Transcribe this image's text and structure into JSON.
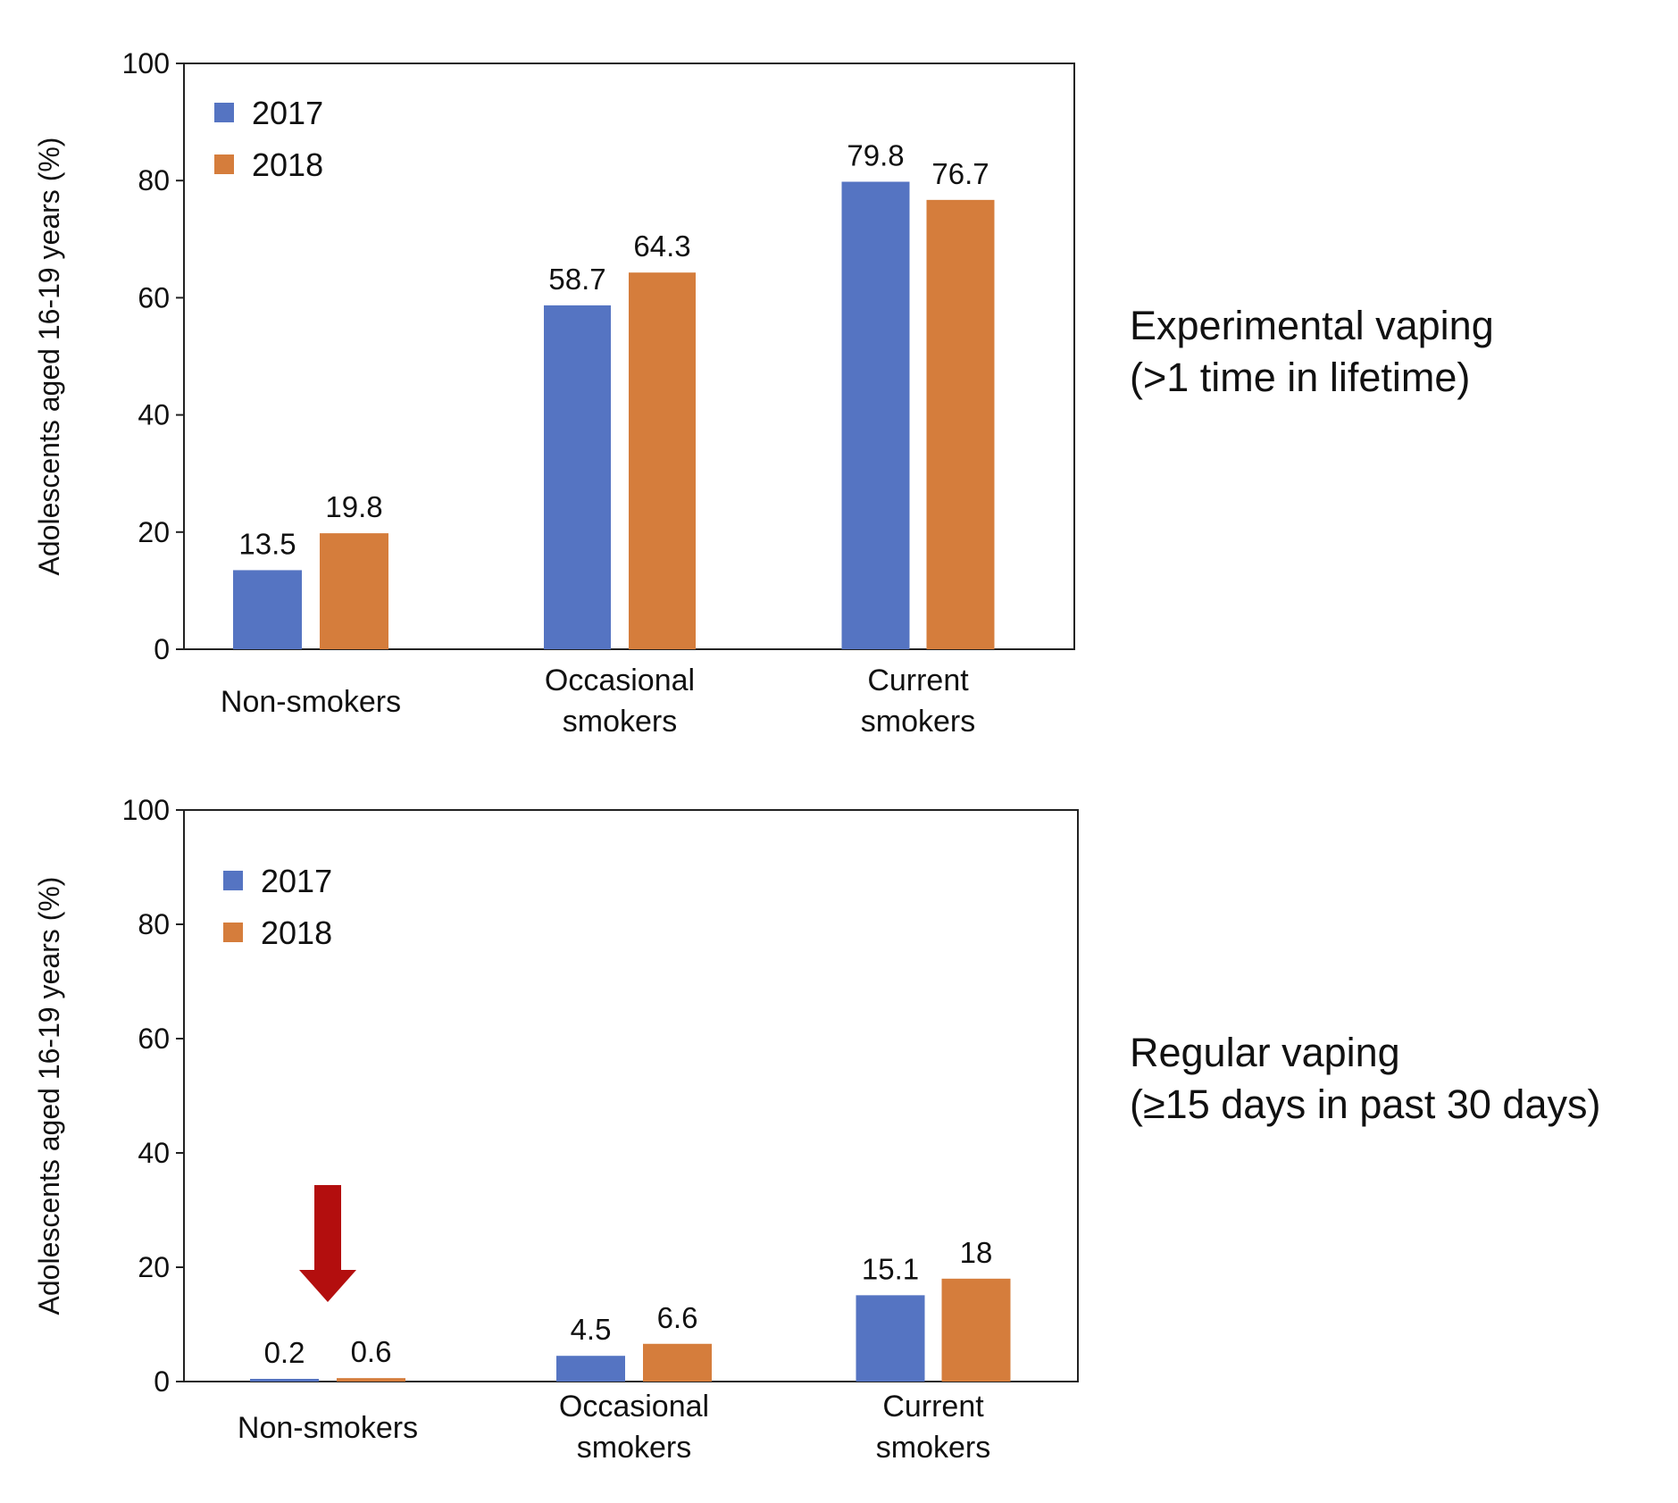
{
  "colors": {
    "series_2017": "#5574c2",
    "series_2018": "#d57d3c",
    "arrow": "#b30e0e",
    "axis": "#222222"
  },
  "chart_data": [
    {
      "type": "bar",
      "title": "",
      "xlabel": "",
      "ylabel": "Adolescents aged 16-19 years (%)",
      "ylim": [
        0,
        100
      ],
      "yticks": [
        "0",
        "20",
        "40",
        "60",
        "80",
        "100"
      ],
      "grid": false,
      "legend_position": "top-left",
      "categories": [
        [
          "Non-smokers"
        ],
        [
          "Occasional",
          "smokers"
        ],
        [
          "Current",
          "smokers"
        ]
      ],
      "series": [
        {
          "name": "2017",
          "values": [
            13.5,
            58.7,
            79.8
          ],
          "labels": [
            "13.5",
            "58.7",
            "79.8"
          ]
        },
        {
          "name": "2018",
          "values": [
            19.8,
            64.3,
            76.7
          ],
          "labels": [
            "19.8",
            "64.3",
            "76.7"
          ]
        }
      ],
      "annotation": [
        "Experimental vaping",
        "(>1 time in lifetime)"
      ]
    },
    {
      "type": "bar",
      "title": "",
      "xlabel": "",
      "ylabel": "Adolescents aged 16-19 years (%)",
      "ylim": [
        0,
        100
      ],
      "yticks": [
        "0",
        "20",
        "40",
        "60",
        "80",
        "100"
      ],
      "grid": false,
      "legend_position": "top-left",
      "categories": [
        [
          "Non-smokers"
        ],
        [
          "Occasional",
          "smokers"
        ],
        [
          "Current",
          "smokers"
        ]
      ],
      "series": [
        {
          "name": "2017",
          "values": [
            0.2,
            4.5,
            15.1
          ],
          "labels": [
            "0.2",
            "4.5",
            "15.1"
          ]
        },
        {
          "name": "2018",
          "values": [
            0.6,
            6.6,
            18
          ],
          "labels": [
            "0.6",
            "6.6",
            "18"
          ]
        }
      ],
      "annotation": [
        "Regular vaping",
        "(≥15 days in past 30 days)"
      ],
      "arrow_icon": "down-arrow-icon",
      "arrow_category": 0
    }
  ]
}
